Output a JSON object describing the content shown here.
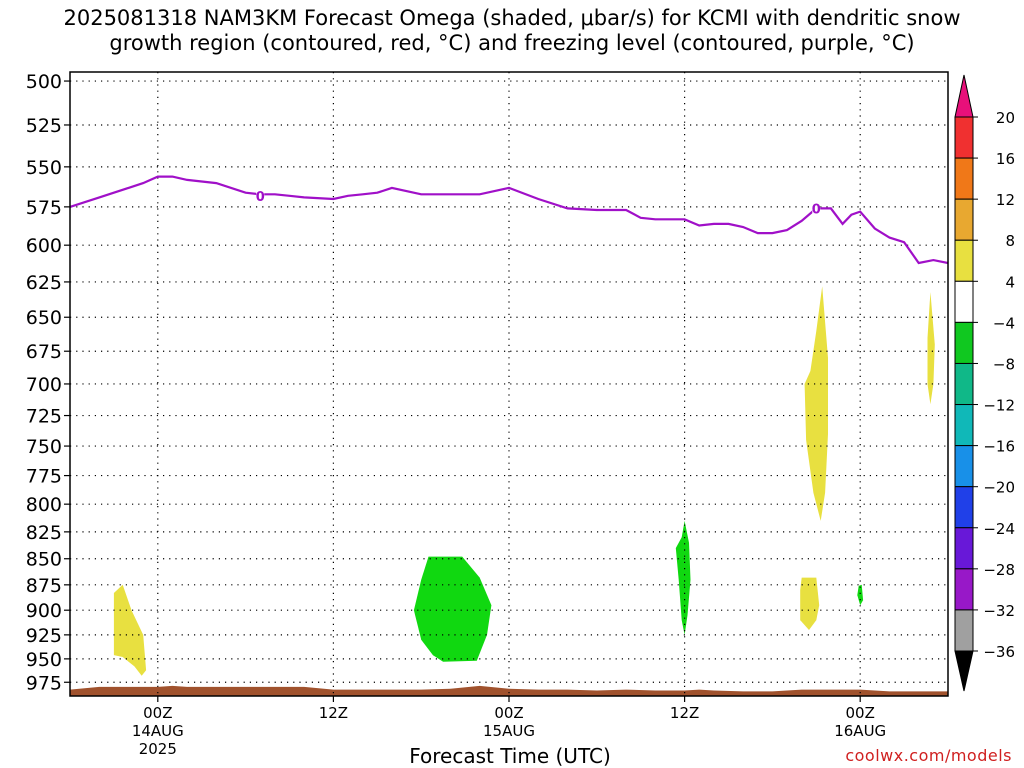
{
  "title_line1": "2025081318 NAM3KM Forecast Omega (shaded, μbar/s) for KCMI with dendritic snow",
  "title_line2": "growth region (contoured, red, °C) and freezing level (contoured, purple, °C)",
  "credit": "coolwx.com/models",
  "chart_data": {
    "type": "area",
    "xlabel": "Forecast Time (UTC)",
    "ylabel": "",
    "xlim_hours": [
      -6,
      54
    ],
    "ylim_hPa": [
      495,
      990
    ],
    "y_scale": "log-pressure (reversed)",
    "grid": true,
    "y_ticks": [
      500,
      525,
      550,
      575,
      600,
      625,
      650,
      675,
      700,
      725,
      750,
      775,
      800,
      825,
      850,
      875,
      900,
      925,
      950,
      975
    ],
    "x_ticks": [
      {
        "h": 0,
        "line1": "00Z",
        "line2": "14AUG",
        "line3": "2025"
      },
      {
        "h": 12,
        "line1": "12Z",
        "line2": "",
        "line3": ""
      },
      {
        "h": 24,
        "line1": "00Z",
        "line2": "15AUG",
        "line3": ""
      },
      {
        "h": 36,
        "line1": "12Z",
        "line2": "",
        "line3": ""
      },
      {
        "h": 48,
        "line1": "00Z",
        "line2": "16AUG",
        "line3": ""
      }
    ],
    "freezing_level": {
      "label": "0",
      "label_at": [
        [
          7,
          568
        ],
        [
          45,
          576
        ]
      ],
      "color": "#a010c8",
      "hours": [
        -6,
        -5,
        -4,
        -2,
        -1,
        0,
        1,
        2,
        4,
        6,
        7,
        8,
        9,
        10,
        12,
        13,
        14,
        15,
        16,
        18,
        20,
        22,
        24,
        26,
        28,
        30,
        32,
        33,
        34,
        36,
        37,
        38,
        39,
        40,
        41,
        42,
        43,
        44,
        45,
        46,
        46.8,
        47.4,
        48,
        49,
        50,
        51,
        52,
        53,
        54
      ],
      "pressure": [
        575,
        572,
        569,
        563,
        560,
        556,
        556,
        558,
        560,
        566,
        567,
        567,
        568,
        569,
        570,
        568,
        567,
        566,
        563,
        567,
        567,
        567,
        563,
        570,
        576,
        577,
        577,
        582,
        583,
        583,
        587,
        586,
        586,
        588,
        592,
        592,
        590,
        584,
        576,
        576,
        586,
        580,
        578,
        589,
        595,
        598,
        612,
        610,
        612
      ]
    },
    "omega_legend": [
      {
        "label": "20",
        "color": "#e8107a"
      },
      {
        "label": "16",
        "color": "#f03030"
      },
      {
        "label": "12",
        "color": "#f07818"
      },
      {
        "label": "8",
        "color": "#e8a830"
      },
      {
        "label": "4",
        "color": "#e8e040"
      },
      {
        "label": "−4",
        "color": "#ffffff"
      },
      {
        "label": "−8",
        "color": "#10c820"
      },
      {
        "label": "−12",
        "color": "#10b888"
      },
      {
        "label": "−16",
        "color": "#10b8b8"
      },
      {
        "label": "−20",
        "color": "#1890e8"
      },
      {
        "label": "−24",
        "color": "#2040e8"
      },
      {
        "label": "−28",
        "color": "#6818d8"
      },
      {
        "label": "−32",
        "color": "#9818c8"
      },
      {
        "label": "−36",
        "color": "#a0a0a0"
      }
    ],
    "omega_regions": [
      {
        "color": "#e8e040",
        "points": [
          [
            -3,
            883
          ],
          [
            -2.4,
            875
          ],
          [
            -1.8,
            900
          ],
          [
            -1,
            925
          ],
          [
            -0.8,
            962
          ],
          [
            -1.1,
            968
          ],
          [
            -1.6,
            958
          ],
          [
            -2.4,
            948
          ],
          [
            -3,
            946
          ]
        ]
      },
      {
        "color": "#10d810",
        "points": [
          [
            18.5,
            848
          ],
          [
            20.8,
            848
          ],
          [
            22,
            868
          ],
          [
            22.8,
            895
          ],
          [
            22.5,
            925
          ],
          [
            21.8,
            952
          ],
          [
            19.5,
            953
          ],
          [
            18.8,
            946
          ],
          [
            18,
            930
          ],
          [
            17.5,
            900
          ],
          [
            18,
            870
          ]
        ]
      },
      {
        "color": "#10d810",
        "points": [
          [
            35.8,
            830
          ],
          [
            36,
            815
          ],
          [
            36.3,
            835
          ],
          [
            36.4,
            870
          ],
          [
            36.2,
            905
          ],
          [
            36,
            925
          ],
          [
            35.8,
            910
          ],
          [
            35.6,
            870
          ],
          [
            35.4,
            840
          ]
        ]
      },
      {
        "color": "#e8e040",
        "points": [
          [
            44.6,
            690
          ],
          [
            45,
            660
          ],
          [
            45.4,
            628
          ],
          [
            45.8,
            680
          ],
          [
            45.8,
            740
          ],
          [
            45.6,
            790
          ],
          [
            45.3,
            815
          ],
          [
            44.8,
            790
          ],
          [
            44.3,
            745
          ],
          [
            44.2,
            700
          ]
        ]
      },
      {
        "color": "#e8e040",
        "points": [
          [
            44,
            868
          ],
          [
            45,
            868
          ],
          [
            45.2,
            895
          ],
          [
            45,
            910
          ],
          [
            44.5,
            920
          ],
          [
            43.9,
            910
          ],
          [
            43.9,
            880
          ]
        ]
      },
      {
        "color": "#10d810",
        "points": [
          [
            47.9,
            876
          ],
          [
            48.1,
            875
          ],
          [
            48.2,
            890
          ],
          [
            48,
            895
          ],
          [
            47.8,
            885
          ]
        ]
      },
      {
        "color": "#e8e040",
        "points": [
          [
            52.6,
            665
          ],
          [
            52.8,
            632
          ],
          [
            53.1,
            670
          ],
          [
            53,
            700
          ],
          [
            52.8,
            716
          ],
          [
            52.6,
            700
          ]
        ]
      }
    ],
    "terrain": {
      "color": "#a0522d",
      "hours": [
        -6,
        -4,
        0,
        1,
        2,
        4,
        8,
        10,
        12,
        14,
        16,
        18,
        20,
        22,
        24,
        26,
        28,
        30,
        32,
        34,
        36,
        37,
        38,
        40,
        42,
        44,
        46,
        48,
        50,
        52,
        54
      ],
      "pressure": [
        983,
        980,
        980,
        979,
        980,
        980,
        980,
        980,
        983,
        983,
        983,
        983,
        982,
        979,
        982,
        983,
        983,
        984,
        983,
        984,
        984,
        983,
        984,
        985,
        985,
        983,
        983,
        983,
        985,
        985,
        985
      ]
    }
  }
}
